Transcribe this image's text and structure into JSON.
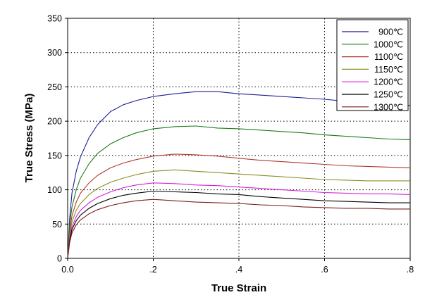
{
  "chart_data": {
    "type": "line",
    "xlabel": "True Strain",
    "ylabel": "True Stress (MPa)",
    "xlim": [
      0,
      0.8
    ],
    "ylim": [
      0,
      350
    ],
    "x_ticks": [
      0.0,
      0.2,
      0.4,
      0.6,
      0.8
    ],
    "x_tick_labels": [
      "0.0",
      ".2",
      ".4",
      ".6",
      ".8"
    ],
    "y_ticks": [
      0,
      50,
      100,
      150,
      200,
      250,
      300,
      350
    ],
    "y_tick_labels": [
      "0",
      "50",
      "100",
      "150",
      "200",
      "250",
      "300",
      "350"
    ],
    "grid": "dotted at x and y ticks",
    "legend_position": "top-right",
    "series": [
      {
        "name": "900℃",
        "color": "#1c1c99",
        "x": [
          0,
          0.005,
          0.01,
          0.02,
          0.03,
          0.05,
          0.07,
          0.1,
          0.13,
          0.16,
          0.2,
          0.25,
          0.3,
          0.35,
          0.4,
          0.45,
          0.5,
          0.55,
          0.6,
          0.65,
          0.7,
          0.75,
          0.8
        ],
        "values": [
          0,
          60,
          95,
          127,
          148,
          176,
          195,
          214,
          224,
          230,
          236,
          240,
          243,
          243,
          240,
          238,
          236,
          234,
          232,
          229,
          227,
          225,
          223
        ]
      },
      {
        "name": "1000℃",
        "color": "#1a7a1a",
        "x": [
          0,
          0.005,
          0.01,
          0.02,
          0.03,
          0.05,
          0.07,
          0.1,
          0.13,
          0.16,
          0.2,
          0.25,
          0.3,
          0.35,
          0.4,
          0.45,
          0.5,
          0.55,
          0.6,
          0.65,
          0.7,
          0.75,
          0.8
        ],
        "values": [
          0,
          50,
          75,
          100,
          117,
          138,
          153,
          167,
          176,
          183,
          189,
          192,
          193,
          190,
          189,
          187,
          185,
          183,
          180,
          178,
          176,
          174,
          173
        ]
      },
      {
        "name": "1100℃",
        "color": "#b0382c",
        "x": [
          0,
          0.005,
          0.01,
          0.02,
          0.03,
          0.05,
          0.07,
          0.1,
          0.13,
          0.16,
          0.2,
          0.25,
          0.3,
          0.35,
          0.4,
          0.45,
          0.5,
          0.55,
          0.6,
          0.65,
          0.7,
          0.75,
          0.8
        ],
        "values": [
          0,
          40,
          62,
          82,
          95,
          110,
          121,
          132,
          139,
          144,
          149,
          152,
          151,
          149,
          146,
          143,
          141,
          139,
          137,
          135,
          134,
          133,
          132
        ]
      },
      {
        "name": "1150℃",
        "color": "#8c8c24",
        "x": [
          0,
          0.005,
          0.01,
          0.02,
          0.03,
          0.05,
          0.07,
          0.1,
          0.13,
          0.16,
          0.2,
          0.25,
          0.3,
          0.35,
          0.4,
          0.45,
          0.5,
          0.55,
          0.6,
          0.65,
          0.7,
          0.75,
          0.8
        ],
        "values": [
          0,
          35,
          53,
          70,
          80,
          93,
          102,
          111,
          117,
          122,
          127,
          129,
          127,
          125,
          123,
          121,
          119,
          117,
          115,
          114,
          113,
          113,
          113
        ]
      },
      {
        "name": "1200℃",
        "color": "#d61fd6",
        "x": [
          0,
          0.005,
          0.01,
          0.02,
          0.03,
          0.05,
          0.07,
          0.1,
          0.13,
          0.16,
          0.2,
          0.25,
          0.3,
          0.35,
          0.4,
          0.45,
          0.5,
          0.55,
          0.6,
          0.65,
          0.7,
          0.75,
          0.8
        ],
        "values": [
          0,
          30,
          46,
          61,
          70,
          81,
          89,
          97,
          103,
          107,
          110,
          109,
          107,
          106,
          104,
          102,
          100,
          98,
          96,
          95,
          94,
          94,
          93
        ]
      },
      {
        "name": "1250℃",
        "color": "#000000",
        "x": [
          0,
          0.005,
          0.01,
          0.02,
          0.03,
          0.05,
          0.07,
          0.1,
          0.13,
          0.16,
          0.2,
          0.25,
          0.3,
          0.35,
          0.4,
          0.45,
          0.5,
          0.55,
          0.6,
          0.65,
          0.7,
          0.75,
          0.8
        ],
        "values": [
          0,
          27,
          42,
          55,
          63,
          73,
          80,
          87,
          92,
          95,
          98,
          97,
          96,
          94,
          93,
          90,
          88,
          86,
          84,
          83,
          82,
          81,
          81
        ]
      },
      {
        "name": "1300℃",
        "color": "#7a1f1f",
        "x": [
          0,
          0.005,
          0.01,
          0.02,
          0.03,
          0.05,
          0.07,
          0.1,
          0.13,
          0.16,
          0.2,
          0.25,
          0.3,
          0.35,
          0.4,
          0.45,
          0.5,
          0.55,
          0.6,
          0.65,
          0.7,
          0.75,
          0.8
        ],
        "values": [
          0,
          24,
          37,
          49,
          56,
          65,
          71,
          77,
          81,
          84,
          86,
          84,
          82,
          81,
          80,
          78,
          77,
          75,
          74,
          73,
          73,
          72,
          72
        ]
      }
    ]
  }
}
